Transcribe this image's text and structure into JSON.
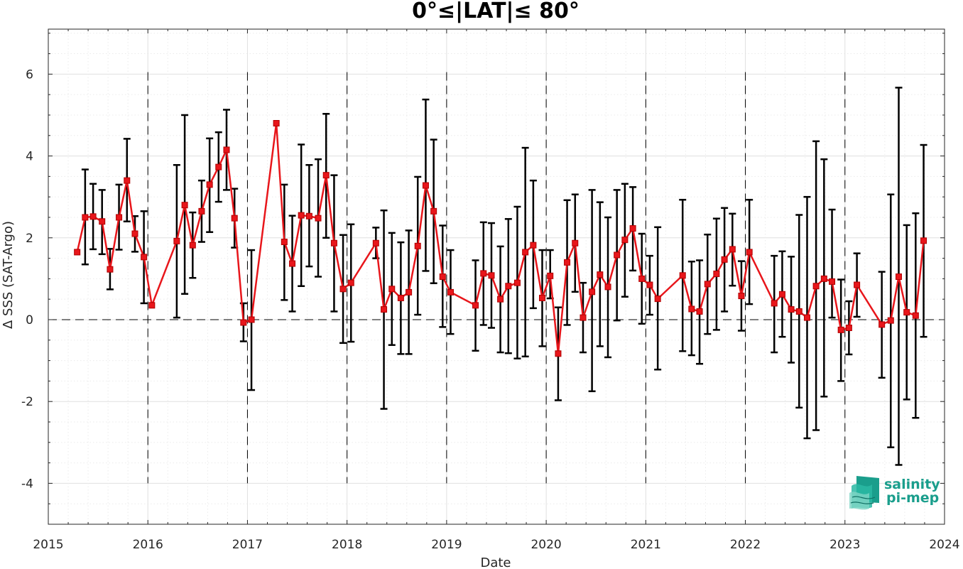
{
  "chart_data": {
    "type": "line",
    "title": "0°≤|LAT|≤ 80°",
    "xlabel": "Date",
    "ylabel": "Δ SSS (SAT-Argo)",
    "xlim": [
      2015.0,
      2024.0
    ],
    "ylim": [
      -5.0,
      7.1
    ],
    "x_ticks": [
      2015,
      2016,
      2017,
      2018,
      2019,
      2020,
      2021,
      2022,
      2023,
      2024
    ],
    "x_tick_labels": [
      "2015",
      "2016",
      "2017",
      "2018",
      "2019",
      "2020",
      "2021",
      "2022",
      "2023",
      "2024"
    ],
    "y_ticks": [
      -4,
      -2,
      0,
      2,
      4,
      6
    ],
    "y_tick_labels": [
      "-4",
      "-2",
      "0",
      "2",
      "4",
      "6"
    ],
    "grid": true,
    "zero_line": true,
    "year_boundary_lines": [
      2016,
      2017,
      2018,
      2019,
      2020,
      2021,
      2022,
      2023
    ],
    "line_color": "#e8161b",
    "errorbar_color": "#000000",
    "series": [
      {
        "x": [
          2015.29,
          2015.37,
          2015.45,
          2015.54,
          2015.62,
          2015.71,
          2015.79,
          2015.87,
          2015.96,
          2016.04,
          2016.29,
          2016.37,
          2016.45,
          2016.54,
          2016.62,
          2016.71,
          2016.79,
          2016.87,
          2016.96,
          2017.04,
          2017.29,
          2017.37,
          2017.45,
          2017.54,
          2017.62,
          2017.71,
          2017.79,
          2017.87,
          2017.96,
          2018.04,
          2018.29,
          2018.37,
          2018.45,
          2018.54,
          2018.62,
          2018.71,
          2018.79,
          2018.87,
          2018.96,
          2019.04,
          2019.29,
          2019.37,
          2019.45,
          2019.54,
          2019.62,
          2019.71,
          2019.79,
          2019.87,
          2019.96,
          2020.04,
          2020.12,
          2020.21,
          2020.29,
          2020.37,
          2020.46,
          2020.54,
          2020.62,
          2020.71,
          2020.79,
          2020.87,
          2020.96,
          2021.04,
          2021.12,
          2021.37,
          2021.46,
          2021.54,
          2021.62,
          2021.71,
          2021.79,
          2021.87,
          2021.96,
          2022.04,
          2022.29,
          2022.37,
          2022.46,
          2022.54,
          2022.62,
          2022.71,
          2022.79,
          2022.87,
          2022.96,
          2023.04,
          2023.12,
          2023.37,
          2023.46,
          2023.54,
          2023.62,
          2023.71,
          2023.79
        ],
        "y": [
          1.65,
          2.5,
          2.52,
          2.4,
          1.23,
          2.5,
          3.4,
          2.1,
          1.53,
          0.35,
          1.92,
          2.8,
          1.82,
          2.65,
          3.3,
          3.73,
          4.15,
          2.48,
          -0.07,
          0.0,
          4.8,
          1.9,
          1.37,
          2.55,
          2.53,
          2.48,
          3.53,
          1.87,
          0.75,
          0.9,
          1.87,
          0.25,
          0.75,
          0.53,
          0.67,
          1.8,
          3.28,
          2.65,
          1.05,
          0.67,
          0.35,
          1.13,
          1.08,
          0.5,
          0.82,
          0.9,
          1.65,
          1.82,
          0.53,
          1.07,
          -0.83,
          1.4,
          1.87,
          0.05,
          0.68,
          1.1,
          0.8,
          1.58,
          1.95,
          2.23,
          1.0,
          0.85,
          0.51,
          1.08,
          0.26,
          0.2,
          0.87,
          1.12,
          1.47,
          1.72,
          0.58,
          1.65,
          0.4,
          0.62,
          0.25,
          0.2,
          0.05,
          0.82,
          1.0,
          0.93,
          -0.25,
          -0.2,
          0.85,
          -0.12,
          -0.02,
          1.05,
          0.18,
          0.1,
          1.93
        ],
        "err_low": [
          null,
          1.35,
          1.72,
          1.6,
          0.74,
          1.71,
          2.4,
          1.66,
          0.4,
          null,
          0.05,
          0.63,
          1.02,
          1.9,
          2.14,
          2.88,
          3.17,
          1.76,
          -0.53,
          -1.72,
          null,
          0.48,
          0.2,
          0.82,
          1.3,
          1.05,
          2.0,
          0.2,
          -0.57,
          -0.54,
          1.5,
          -2.18,
          -0.62,
          -0.84,
          -0.84,
          0.12,
          1.19,
          0.89,
          -0.18,
          -0.35,
          -0.76,
          -0.13,
          -0.2,
          -0.8,
          -0.82,
          -0.95,
          -0.9,
          0.28,
          -0.65,
          0.52,
          -1.97,
          -0.13,
          0.68,
          -0.8,
          -1.75,
          -0.65,
          -0.92,
          -0.02,
          0.56,
          1.2,
          -0.1,
          0.12,
          -1.22,
          -0.77,
          -0.87,
          -1.08,
          -0.35,
          -0.25,
          0.2,
          0.83,
          -0.27,
          0.38,
          -0.8,
          -0.42,
          -1.05,
          -2.15,
          -2.9,
          -2.7,
          -1.88,
          0.05,
          -1.5,
          -0.85,
          0.07,
          -1.42,
          -3.12,
          -3.55,
          -1.95,
          -2.4,
          -0.42
        ],
        "err_high": [
          null,
          3.67,
          3.32,
          3.17,
          1.73,
          3.3,
          4.42,
          2.53,
          2.65,
          null,
          3.78,
          5.0,
          2.62,
          3.4,
          4.43,
          4.58,
          5.13,
          3.2,
          0.4,
          1.7,
          null,
          3.3,
          2.54,
          4.28,
          3.78,
          3.92,
          5.03,
          3.53,
          2.07,
          2.33,
          2.25,
          2.67,
          2.12,
          1.89,
          2.18,
          3.49,
          5.38,
          4.4,
          2.3,
          1.7,
          1.45,
          2.38,
          2.36,
          1.79,
          2.46,
          2.76,
          4.2,
          3.4,
          1.7,
          1.7,
          0.3,
          2.92,
          3.06,
          0.9,
          3.17,
          2.87,
          2.5,
          3.17,
          3.32,
          3.24,
          2.1,
          1.56,
          2.26,
          2.93,
          1.42,
          1.45,
          2.08,
          2.47,
          2.73,
          2.59,
          1.43,
          2.93,
          1.56,
          1.67,
          1.54,
          2.56,
          3.0,
          4.36,
          3.92,
          2.69,
          0.98,
          0.45,
          1.62,
          1.17,
          3.06,
          5.67,
          2.31,
          2.6,
          4.27
        ]
      }
    ]
  },
  "logo": {
    "line1": "salinity",
    "line2": "pi-mep",
    "color": "#1a9e8c"
  }
}
